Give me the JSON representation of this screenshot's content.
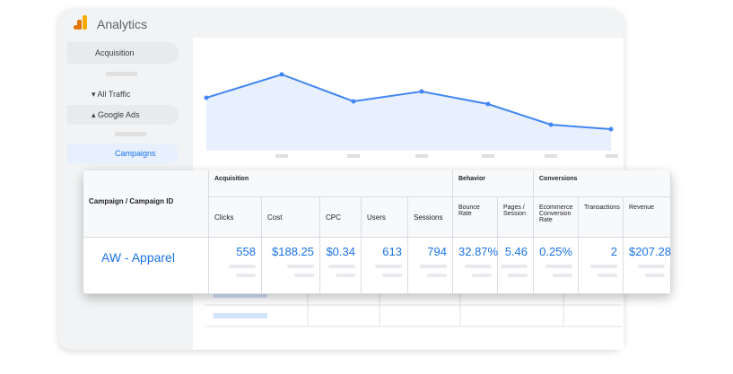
{
  "header": {
    "title": "Analytics"
  },
  "sidebar": {
    "items": [
      "Acquisition",
      "All Traffic",
      "Google Ads",
      "Campaigns"
    ]
  },
  "table": {
    "first_column": "Campaign / Campaign ID",
    "groups": [
      "Acquisition",
      "Behavior",
      "Conversions"
    ],
    "columns": [
      "Clicks",
      "Cost",
      "CPC",
      "Users",
      "Sessions",
      "Bounce Rate",
      "Pages / Session",
      "Ecommerce Conversion Rate",
      "Transactions",
      "Revenue"
    ],
    "rows": [
      [
        "AW - Apparel",
        "558",
        "$188.25",
        "$0.34",
        "613",
        "794",
        "32.87%",
        "5.46",
        "0.25%",
        "2",
        "$207.28"
      ]
    ]
  }
}
